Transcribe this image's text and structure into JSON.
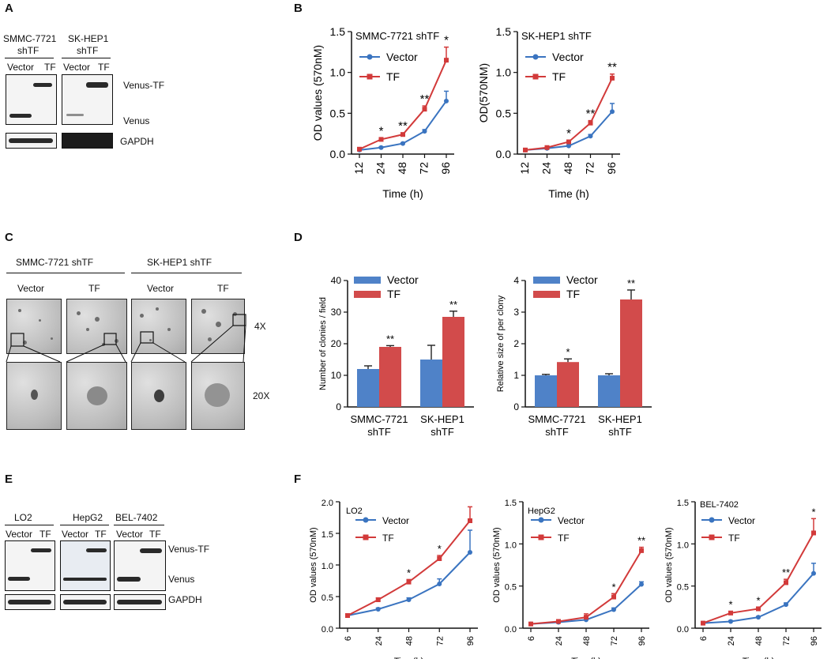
{
  "panels": {
    "a": "A",
    "b": "B",
    "c": "C",
    "d": "D",
    "e": "E",
    "f": "F"
  },
  "panel_a": {
    "col1": "SMMC-7721",
    "col1_sub": "shTF",
    "col2": "SK-HEP1",
    "col2_sub": "shTF",
    "lanes": [
      "Vector",
      "TF"
    ],
    "lanes2": [
      "Vector",
      "TF"
    ],
    "right_labels": [
      "Venus-TF",
      "Venus",
      "GAPDH"
    ]
  },
  "panel_c": {
    "groups": [
      "SMMC-7721 shTF",
      "SK-HEP1 shTF"
    ],
    "cols": [
      "Vector",
      "TF",
      "Vector",
      "TF"
    ],
    "mags": [
      "4X",
      "20X"
    ]
  },
  "panel_e": {
    "cells": [
      "LO2",
      "HepG2",
      "BEL-7402"
    ],
    "lanes": [
      "Vector",
      "TF"
    ],
    "right_labels": [
      "Venus-TF",
      "Venus",
      "GAPDH"
    ]
  },
  "chart_data": [
    {
      "type": "line",
      "panel": "B",
      "title": "SMMC-7721 shTF",
      "xlabel": "Time (h)",
      "ylabel": "OD values (570nM)",
      "categories": [
        "12",
        "24",
        "48",
        "72",
        "96"
      ],
      "ylim": [
        0,
        1.5
      ],
      "yticks": [
        "0.0",
        "0.5",
        "1.0",
        "1.5"
      ],
      "legend": [
        "Vector",
        "TF"
      ],
      "series": [
        {
          "name": "Vector",
          "values": [
            0.05,
            0.08,
            0.13,
            0.28,
            0.65
          ],
          "err": [
            0.01,
            0.01,
            0.01,
            0.02,
            0.12
          ]
        },
        {
          "name": "TF",
          "values": [
            0.06,
            0.18,
            0.24,
            0.55,
            1.15
          ],
          "err": [
            0.01,
            0.02,
            0.02,
            0.04,
            0.16
          ]
        }
      ],
      "annotations": [
        "",
        "*",
        "**",
        "**",
        "*"
      ]
    },
    {
      "type": "line",
      "panel": "B",
      "title": "SK-HEP1 shTF",
      "xlabel": "Time (h)",
      "ylabel": "OD(570NM)",
      "categories": [
        "12",
        "24",
        "48",
        "72",
        "96"
      ],
      "ylim": [
        0,
        1.5
      ],
      "yticks": [
        "0.0",
        "0.5",
        "1.0",
        "1.5"
      ],
      "legend": [
        "Vector",
        "TF"
      ],
      "series": [
        {
          "name": "Vector",
          "values": [
            0.05,
            0.07,
            0.1,
            0.22,
            0.52
          ],
          "err": [
            0.01,
            0.01,
            0.01,
            0.02,
            0.1
          ]
        },
        {
          "name": "TF",
          "values": [
            0.05,
            0.08,
            0.15,
            0.38,
            0.93
          ],
          "err": [
            0.01,
            0.01,
            0.02,
            0.03,
            0.05
          ]
        }
      ],
      "annotations": [
        "",
        "",
        "*",
        "**",
        "**"
      ]
    },
    {
      "type": "bar",
      "panel": "D",
      "xlabel": "",
      "ylabel": "Number of clonies / field",
      "categories": [
        "SMMC-7721",
        "SK-HEP1"
      ],
      "categories_sub": [
        "shTF",
        "shTF"
      ],
      "ylim": [
        0,
        40
      ],
      "yticks": [
        "0",
        "10",
        "20",
        "30",
        "40"
      ],
      "series": [
        {
          "name": "Vector",
          "values": [
            12,
            15
          ],
          "err": [
            1,
            4.5
          ]
        },
        {
          "name": "TF",
          "values": [
            19,
            28.5
          ],
          "err": [
            0.4,
            1.8
          ]
        }
      ],
      "annotations": [
        "**",
        "**"
      ]
    },
    {
      "type": "bar",
      "panel": "D",
      "xlabel": "",
      "ylabel": "Relative size of per clony",
      "categories": [
        "SMMC-7721",
        "SK-HEP1"
      ],
      "categories_sub": [
        "shTF",
        "shTF"
      ],
      "ylim": [
        0,
        4
      ],
      "yticks": [
        "0",
        "1",
        "2",
        "3",
        "4"
      ],
      "series": [
        {
          "name": "Vector",
          "values": [
            1.0,
            1.0
          ],
          "err": [
            0.03,
            0.05
          ]
        },
        {
          "name": "TF",
          "values": [
            1.42,
            3.4
          ],
          "err": [
            0.1,
            0.3
          ]
        }
      ],
      "annotations": [
        "*",
        "**"
      ]
    },
    {
      "type": "line",
      "panel": "F",
      "title": "LO2",
      "xlabel": "Time(h)",
      "ylabel": "OD values (570nM)",
      "categories": [
        "6",
        "24",
        "48",
        "72",
        "96"
      ],
      "ylim": [
        0,
        2.0
      ],
      "yticks": [
        "0.0",
        "0.5",
        "1.0",
        "1.5",
        "2.0"
      ],
      "legend": [
        "Vector",
        "TF"
      ],
      "series": [
        {
          "name": "Vector",
          "values": [
            0.2,
            0.3,
            0.45,
            0.7,
            1.2
          ],
          "err": [
            0.02,
            0.02,
            0.03,
            0.08,
            0.35
          ]
        },
        {
          "name": "TF",
          "values": [
            0.2,
            0.45,
            0.73,
            1.1,
            1.7
          ],
          "err": [
            0.02,
            0.03,
            0.04,
            0.05,
            0.22
          ]
        }
      ],
      "annotations": [
        "",
        "",
        "*",
        "*",
        ""
      ]
    },
    {
      "type": "line",
      "panel": "F",
      "title": "HepG2",
      "xlabel": "Time(h)",
      "ylabel": "OD values (570nM)",
      "categories": [
        "6",
        "24",
        "48",
        "72",
        "96"
      ],
      "ylim": [
        0,
        1.5
      ],
      "yticks": [
        "0.0",
        "0.5",
        "1.0",
        "1.5"
      ],
      "legend": [
        "Vector",
        "TF"
      ],
      "series": [
        {
          "name": "Vector",
          "values": [
            0.05,
            0.07,
            0.1,
            0.22,
            0.52
          ],
          "err": [
            0.01,
            0.01,
            0.02,
            0.02,
            0.03
          ]
        },
        {
          "name": "TF",
          "values": [
            0.05,
            0.08,
            0.13,
            0.37,
            0.92
          ],
          "err": [
            0.01,
            0.01,
            0.04,
            0.04,
            0.04
          ]
        }
      ],
      "annotations": [
        "",
        "",
        "",
        "*",
        "**"
      ]
    },
    {
      "type": "line",
      "panel": "F",
      "title": "BEL-7402",
      "xlabel": "Time (h)",
      "ylabel": "OD values (570nM)",
      "categories": [
        "6",
        "24",
        "48",
        "72",
        "96"
      ],
      "ylim": [
        0,
        1.5
      ],
      "yticks": [
        "0.0",
        "0.5",
        "1.0",
        "1.5"
      ],
      "legend": [
        "Vector",
        "TF"
      ],
      "series": [
        {
          "name": "Vector",
          "values": [
            0.06,
            0.08,
            0.13,
            0.28,
            0.65
          ],
          "err": [
            0.01,
            0.01,
            0.01,
            0.02,
            0.12
          ]
        },
        {
          "name": "TF",
          "values": [
            0.06,
            0.18,
            0.23,
            0.54,
            1.13
          ],
          "err": [
            0.01,
            0.02,
            0.02,
            0.04,
            0.17
          ]
        }
      ],
      "annotations": [
        "",
        "*",
        "*",
        "**",
        "*"
      ]
    }
  ],
  "colors": {
    "vector": "#3a74c0",
    "tf": "#d23a3a",
    "bar_vector": "#4f82c8",
    "bar_tf": "#d24b4b"
  }
}
